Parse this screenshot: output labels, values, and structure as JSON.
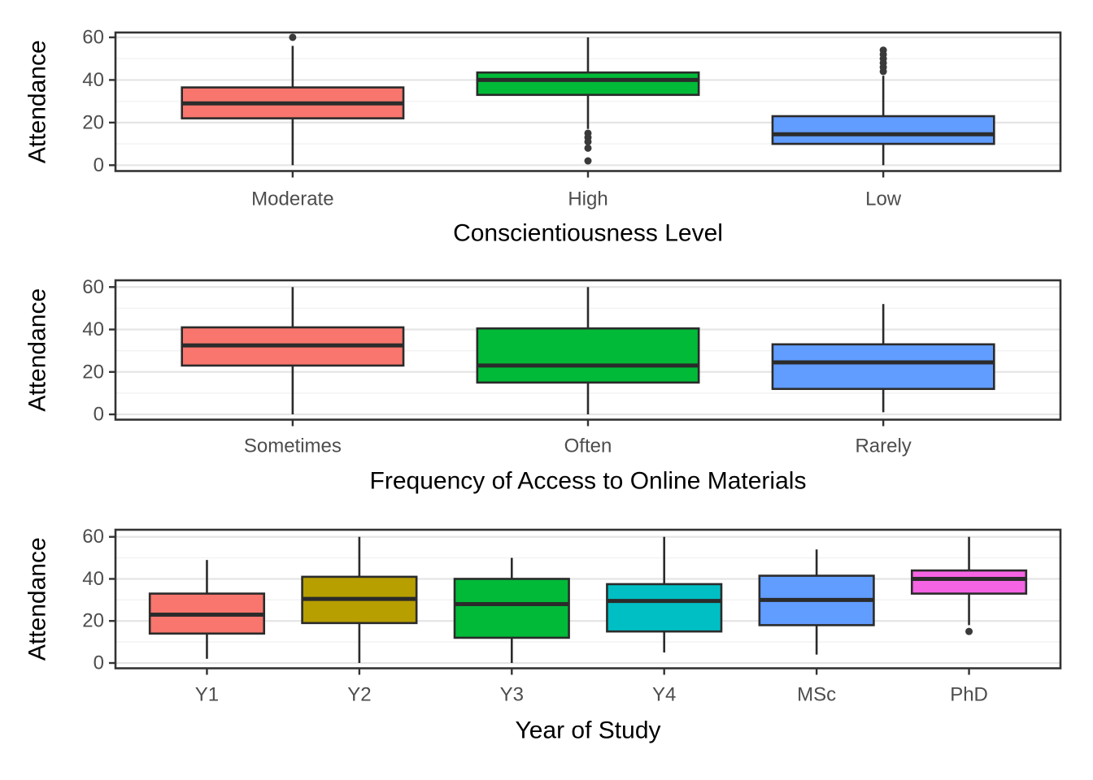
{
  "figure": {
    "background": "#ffffff",
    "panel_border_color": "#333333",
    "box_stroke_color": "#2b2b2b",
    "major_grid_color": "#e5e5e5",
    "minor_grid_color": "#f2f2f2",
    "tick_label_color": "#4d4d4d",
    "axis_title_color": "#000000",
    "outlier_color": "#3a3a3a"
  },
  "chart_data": [
    {
      "type": "boxplot",
      "panel": "conscientiousness",
      "xlabel": "Conscientiousness Level",
      "ylabel": "Attendance",
      "categories": [
        "Moderate",
        "High",
        "Low"
      ],
      "yticks": [
        0,
        20,
        40,
        60
      ],
      "ylim": [
        -3,
        63
      ],
      "grid": "horizontal major+minor",
      "legend": "none",
      "series": [
        {
          "category": "Moderate",
          "color": "#F8766D",
          "min": 0,
          "q1": 22,
          "median": 29,
          "q3": 36.5,
          "max": 56,
          "outliers": [
            60
          ]
        },
        {
          "category": "High",
          "color": "#00BA38",
          "min": 17,
          "q1": 33,
          "median": 40,
          "q3": 43.5,
          "max": 60,
          "outliers": [
            15,
            13,
            11,
            8,
            2
          ]
        },
        {
          "category": "Low",
          "color": "#619CFF",
          "min": 0,
          "q1": 10,
          "median": 14.5,
          "q3": 23,
          "max": 42,
          "outliers": [
            54,
            52,
            50,
            48,
            46,
            44
          ]
        }
      ]
    },
    {
      "type": "boxplot",
      "panel": "online-materials-access",
      "xlabel": "Frequency of Access to Online Materials",
      "ylabel": "Attendance",
      "categories": [
        "Sometimes",
        "Often",
        "Rarely"
      ],
      "yticks": [
        0,
        20,
        40,
        60
      ],
      "ylim": [
        -3,
        63
      ],
      "grid": "horizontal major+minor",
      "legend": "none",
      "series": [
        {
          "category": "Sometimes",
          "color": "#F8766D",
          "min": 0,
          "q1": 23,
          "median": 32.5,
          "q3": 41,
          "max": 60,
          "outliers": []
        },
        {
          "category": "Often",
          "color": "#00BA38",
          "min": 0,
          "q1": 15,
          "median": 23,
          "q3": 40.5,
          "max": 60,
          "outliers": []
        },
        {
          "category": "Rarely",
          "color": "#619CFF",
          "min": 1,
          "q1": 12,
          "median": 24.5,
          "q3": 33,
          "max": 52,
          "outliers": []
        }
      ]
    },
    {
      "type": "boxplot",
      "panel": "year-of-study",
      "xlabel": "Year of Study",
      "ylabel": "Attendance",
      "categories": [
        "Y1",
        "Y2",
        "Y3",
        "Y4",
        "MSc",
        "PhD"
      ],
      "yticks": [
        0,
        20,
        40,
        60
      ],
      "ylim": [
        -3,
        63
      ],
      "grid": "horizontal major+minor",
      "legend": "none",
      "series": [
        {
          "category": "Y1",
          "color": "#F8766D",
          "min": 2,
          "q1": 14,
          "median": 23,
          "q3": 33,
          "max": 49,
          "outliers": []
        },
        {
          "category": "Y2",
          "color": "#B79F00",
          "min": 0,
          "q1": 19,
          "median": 30.5,
          "q3": 41,
          "max": 60,
          "outliers": []
        },
        {
          "category": "Y3",
          "color": "#00BA38",
          "min": 0,
          "q1": 12,
          "median": 28,
          "q3": 40,
          "max": 50,
          "outliers": []
        },
        {
          "category": "Y4",
          "color": "#00BFC4",
          "min": 5,
          "q1": 15,
          "median": 29.5,
          "q3": 37.5,
          "max": 60,
          "outliers": []
        },
        {
          "category": "MSc",
          "color": "#619CFF",
          "min": 4,
          "q1": 18,
          "median": 30,
          "q3": 41.5,
          "max": 54,
          "outliers": []
        },
        {
          "category": "PhD",
          "color": "#F564E3",
          "min": 18,
          "q1": 33,
          "median": 40,
          "q3": 44,
          "max": 60,
          "outliers": [
            15
          ]
        }
      ]
    }
  ]
}
